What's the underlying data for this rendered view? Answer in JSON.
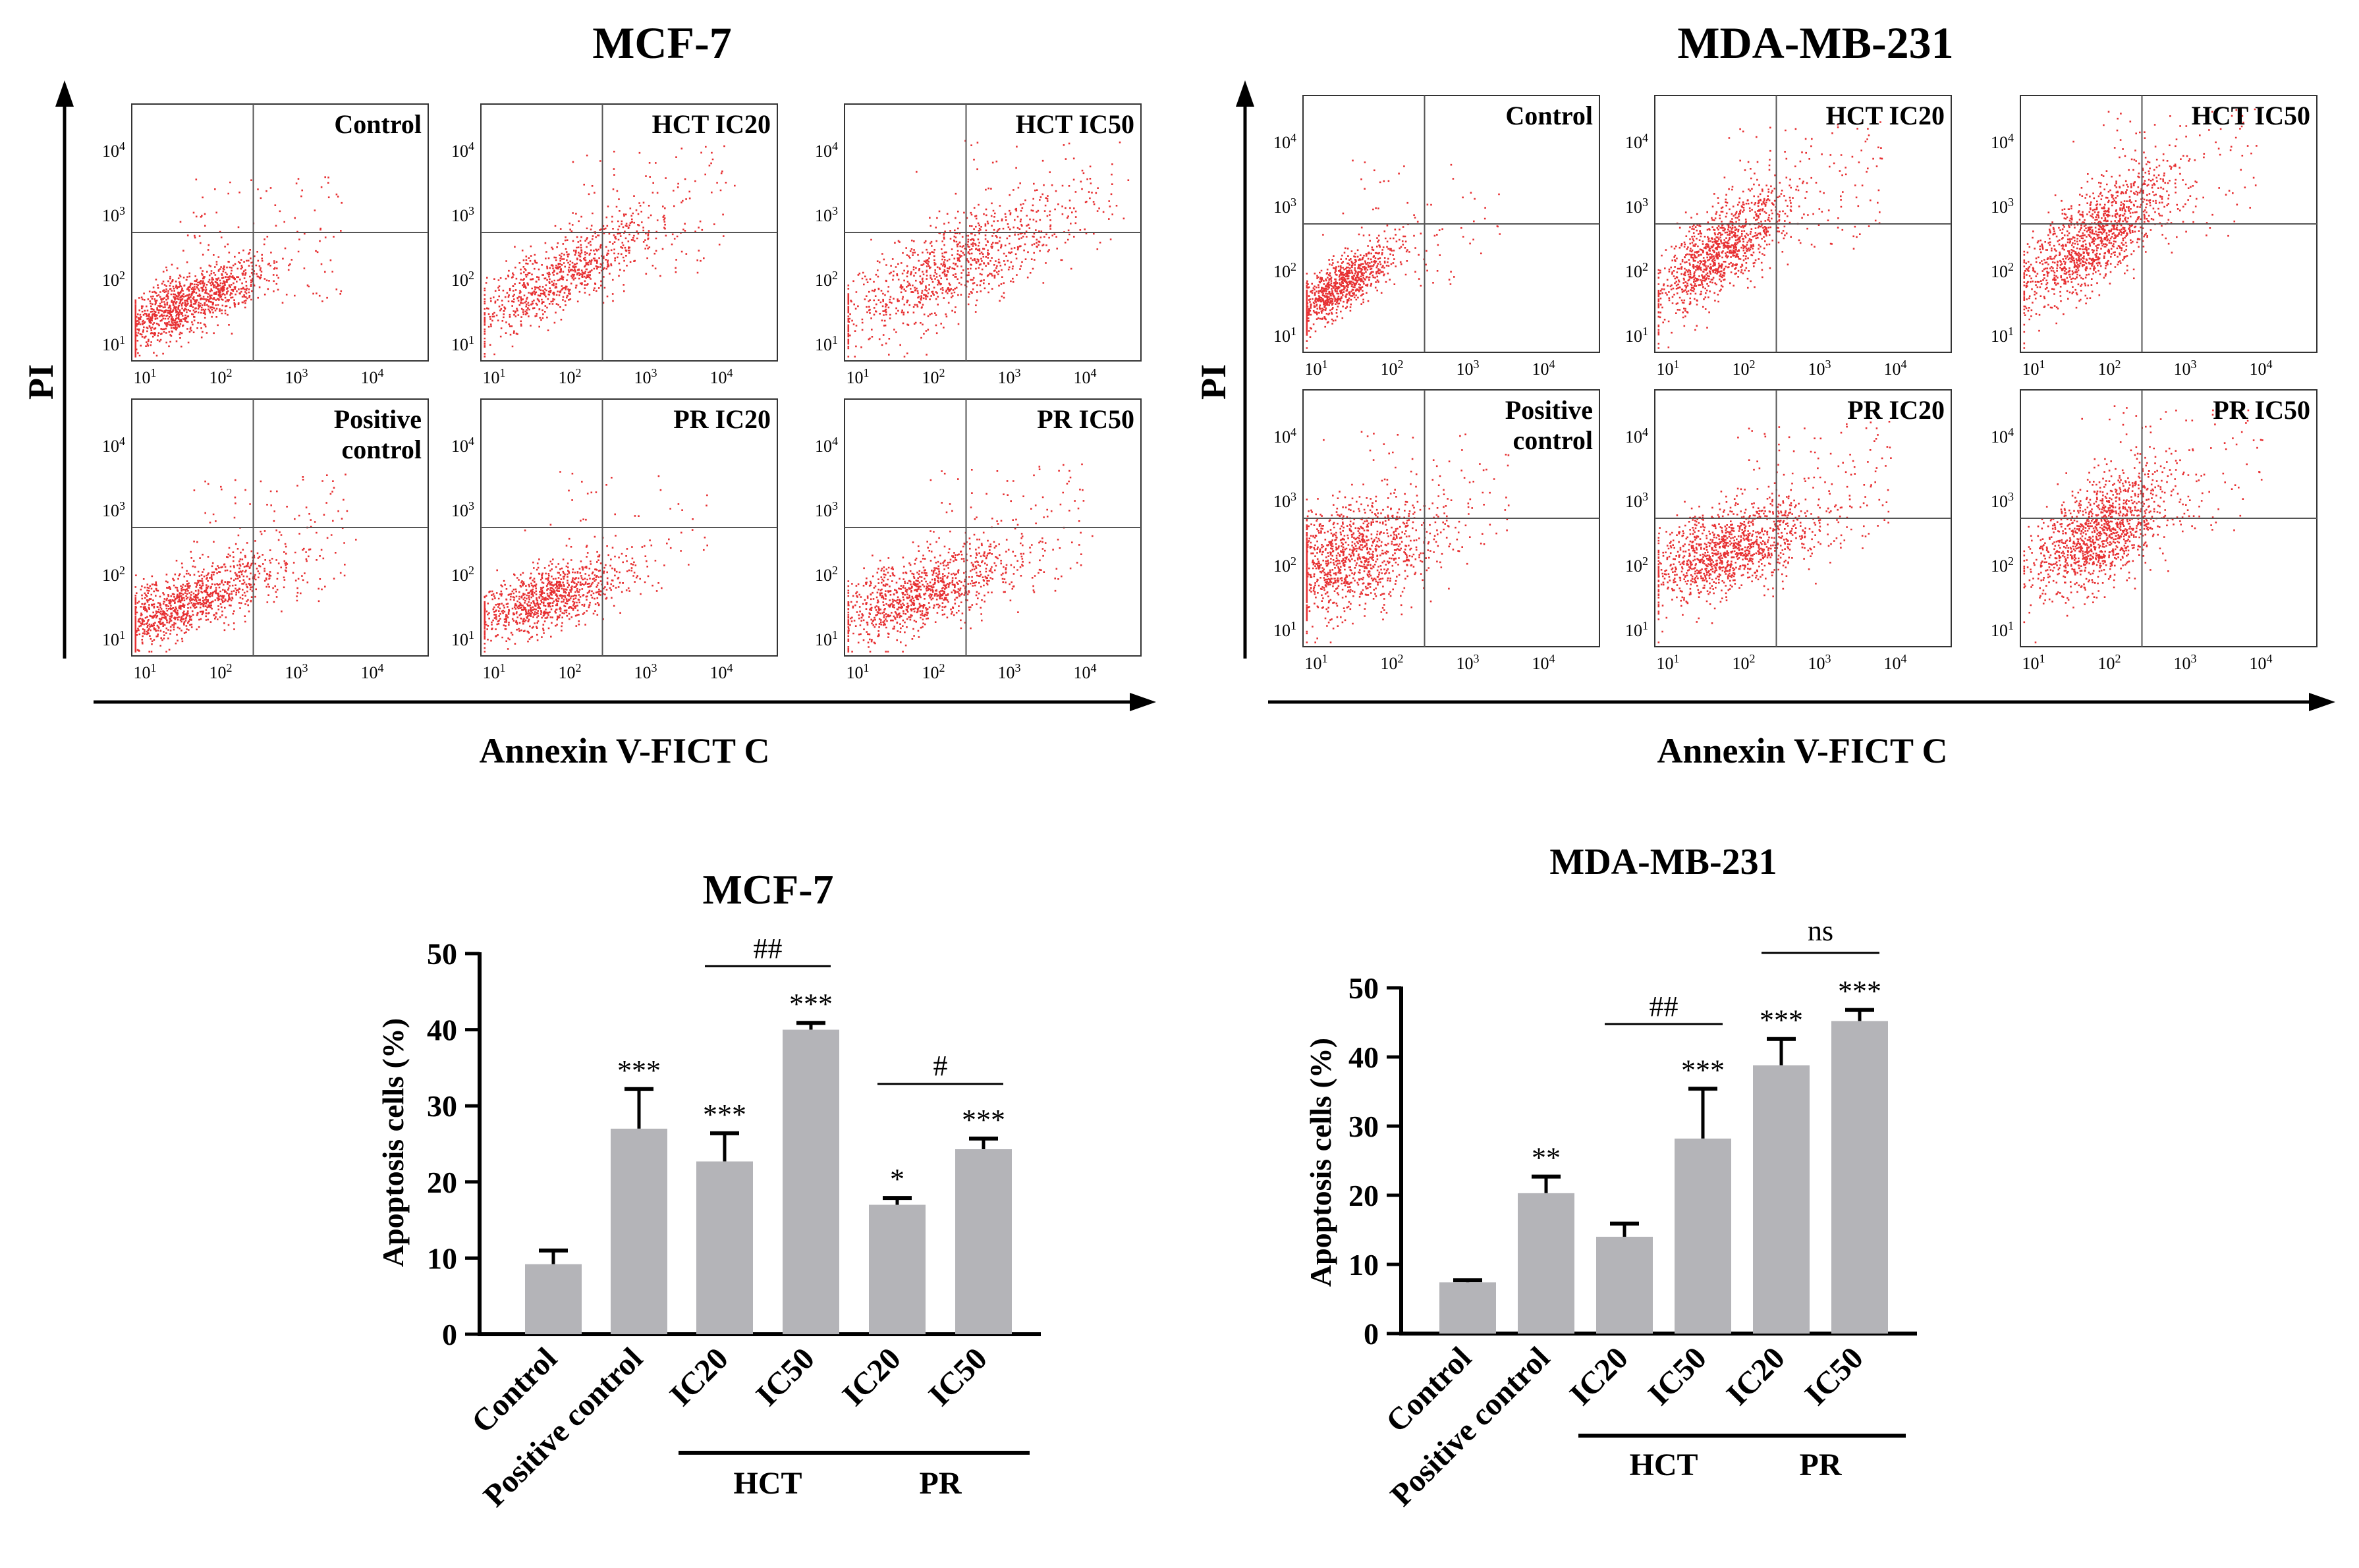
{
  "colors": {
    "points": "#e41a1c",
    "bar": "#b4b4b8",
    "ink": "#000000",
    "quad": "#555555"
  },
  "flow": {
    "x_axis_label": "Annexin V-FICT C",
    "y_axis_label": "PI",
    "tick_base": "10",
    "tick_exps": [
      "1",
      "2",
      "3",
      "4"
    ],
    "cells": [
      {
        "title": "MCF-7",
        "panels": [
          {
            "label": [
              "Control"
            ]
          },
          {
            "label": [
              "HCT IC20"
            ]
          },
          {
            "label": [
              "HCT IC50"
            ]
          },
          {
            "label": [
              "Positive",
              "control"
            ]
          },
          {
            "label": [
              "PR IC20"
            ]
          },
          {
            "label": [
              "PR IC50"
            ]
          }
        ]
      },
      {
        "title": "MDA-MB-231",
        "panels": [
          {
            "label": [
              "Control"
            ]
          },
          {
            "label": [
              "HCT IC20"
            ]
          },
          {
            "label": [
              "HCT IC50"
            ]
          },
          {
            "label": [
              "Positive",
              "control"
            ]
          },
          {
            "label": [
              "PR IC20"
            ]
          },
          {
            "label": [
              "PR IC50"
            ]
          }
        ]
      }
    ]
  },
  "chart_data": [
    {
      "type": "bar",
      "title": "MCF-7",
      "ylabel": "Apoptosis cells (%)",
      "ylim": [
        0,
        50
      ],
      "yticks": [
        0,
        10,
        20,
        30,
        40,
        50
      ],
      "categories": [
        "Control",
        "Positive control",
        "IC20",
        "IC50",
        "IC20",
        "IC50"
      ],
      "values": [
        9.2,
        27.0,
        22.7,
        40.0,
        17.0,
        24.3
      ],
      "errors": [
        1.8,
        5.2,
        3.7,
        0.9,
        0.9,
        1.4
      ],
      "significance": [
        "",
        "***",
        "***",
        "***",
        "*",
        "***"
      ],
      "groups": [
        {
          "label": "HCT",
          "indices": [
            2,
            3
          ]
        },
        {
          "label": "PR",
          "indices": [
            4,
            5
          ]
        }
      ],
      "comparisons": [
        {
          "from": 2,
          "to": 3,
          "label": "##"
        },
        {
          "from": 4,
          "to": 5,
          "label": "#"
        }
      ]
    },
    {
      "type": "bar",
      "title": "MDA-MB-231",
      "ylabel": "Apoptosis cells (%)",
      "ylim": [
        0,
        50
      ],
      "yticks": [
        0,
        10,
        20,
        30,
        40,
        50
      ],
      "categories": [
        "Control",
        "Positive control",
        "IC20",
        "IC50",
        "IC20",
        "IC50"
      ],
      "values": [
        7.4,
        20.3,
        14.0,
        28.2,
        38.8,
        45.2
      ],
      "errors": [
        0.3,
        2.4,
        1.9,
        7.2,
        3.8,
        1.6
      ],
      "significance": [
        "",
        "**",
        "",
        "***",
        "***",
        "***"
      ],
      "groups": [
        {
          "label": "HCT",
          "indices": [
            2,
            3
          ]
        },
        {
          "label": "PR",
          "indices": [
            4,
            5
          ]
        }
      ],
      "comparisons": [
        {
          "from": 2,
          "to": 3,
          "label": "##"
        },
        {
          "from": 4,
          "to": 5,
          "label": "ns"
        }
      ]
    }
  ]
}
